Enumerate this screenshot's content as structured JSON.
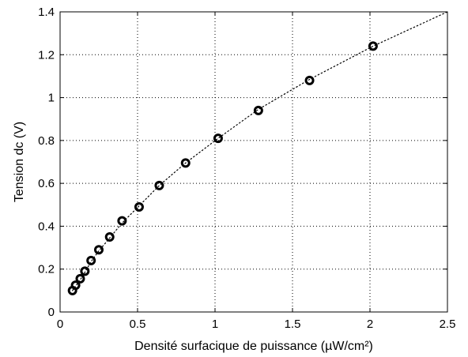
{
  "chart_data": {
    "type": "scatter",
    "title": "",
    "xlabel": "Densité surfacique de puissance (µW/cm²)",
    "ylabel": "Tension dc (V)",
    "xlim": [
      0,
      2.5
    ],
    "ylim": [
      0,
      1.4
    ],
    "xticks": [
      0,
      0.5,
      1,
      1.5,
      2,
      2.5
    ],
    "yticks": [
      0,
      0.2,
      0.4,
      0.6,
      0.8,
      1,
      1.2,
      1.4
    ],
    "xtick_labels": [
      "0",
      "0.5",
      "1",
      "1.5",
      "2",
      "2.5"
    ],
    "ytick_labels": [
      "0",
      "0.2",
      "0.4",
      "0.6",
      "0.8",
      "1",
      "1.2",
      "1.4"
    ],
    "grid": true,
    "series": [
      {
        "kind": "markers",
        "marker": "circle",
        "x": [
          0.08,
          0.1,
          0.13,
          0.16,
          0.2,
          0.25,
          0.32,
          0.4,
          0.51,
          0.64,
          0.81,
          1.02,
          1.28,
          1.61,
          2.02
        ],
        "y": [
          0.1,
          0.125,
          0.155,
          0.19,
          0.24,
          0.29,
          0.35,
          0.425,
          0.49,
          0.59,
          0.695,
          0.81,
          0.94,
          1.08,
          1.24
        ]
      },
      {
        "kind": "fit-line",
        "style": "dotted",
        "x": [
          0.08,
          0.1,
          0.13,
          0.16,
          0.2,
          0.25,
          0.32,
          0.4,
          0.51,
          0.64,
          0.81,
          1.02,
          1.28,
          1.61,
          2.02,
          2.5
        ],
        "y": [
          0.1,
          0.12,
          0.15,
          0.185,
          0.235,
          0.285,
          0.345,
          0.415,
          0.495,
          0.59,
          0.695,
          0.81,
          0.945,
          1.085,
          1.24,
          1.4
        ]
      }
    ],
    "colors": {
      "marker": "#000000",
      "line": "#000000",
      "grid": "#000000",
      "axes": "#000000"
    }
  }
}
